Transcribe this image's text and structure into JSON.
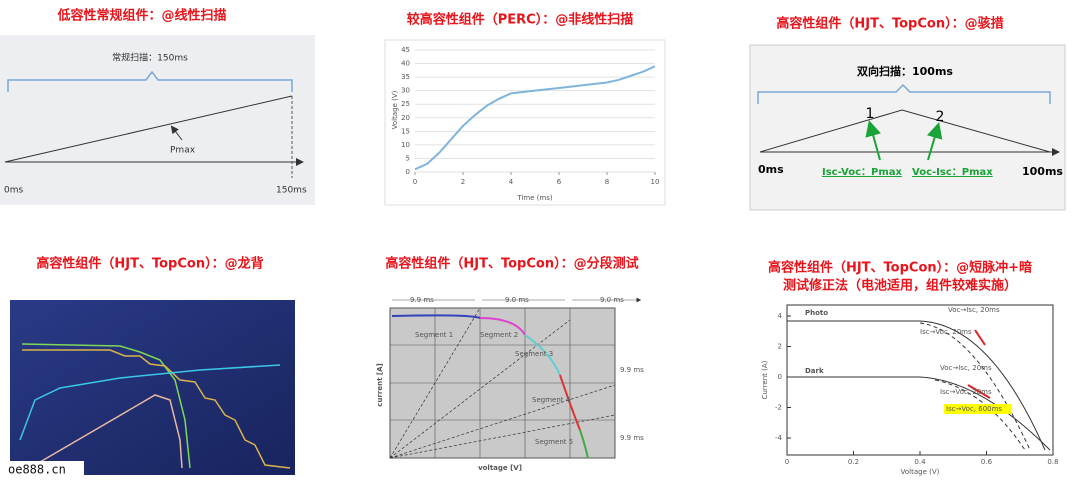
{
  "panel1": {
    "title": "低容性常规组件：@线性扫描",
    "scan_label": "常规扫描：150ms",
    "pmax": "Pmax",
    "start": "0ms",
    "end": "150ms"
  },
  "panel2": {
    "title": "较高容性组件（PERC）：@非线性扫描",
    "chart": {
      "type": "line",
      "xlabel": "Time (ms)",
      "ylabel": "Voltage (V)",
      "color": "#7fb4dd",
      "x": [
        0,
        0.5,
        1,
        1.5,
        2,
        2.5,
        3,
        3.5,
        4,
        5,
        6,
        7,
        8,
        8.5,
        9,
        9.5,
        10
      ],
      "values": [
        1,
        3,
        7,
        12,
        17,
        21,
        24.5,
        27,
        29,
        30,
        31,
        32,
        33,
        34,
        35.5,
        37,
        39
      ],
      "xlim": [
        0,
        10
      ],
      "xticks": [
        0,
        2,
        4,
        6,
        8,
        10
      ],
      "ylim": [
        0,
        45
      ],
      "yticks": [
        0,
        5,
        10,
        15,
        20,
        25,
        30,
        35,
        40,
        45
      ],
      "grid": true
    }
  },
  "panel3": {
    "title": "高容性组件（HJT、TopCon）：@骇措",
    "scan_label": "双向扫描：100ms",
    "point1": "1",
    "point2": "2",
    "label1": "Isc-Voc：Pmax",
    "label2": "Voc-Isc：Pmax",
    "start": "0ms",
    "end": "100ms"
  },
  "panel4": {
    "title": "高容性组件（HJT、TopCon）：@龙背",
    "watermark": "oe888.cn"
  },
  "panel5": {
    "title": "高容性组件（HJT、TopCon）：@分段测试",
    "interval1": "9.9 ms",
    "interval2": "9.0 ms",
    "interval3": "9.0 ms",
    "interval4": "9.9 ms",
    "interval5": "9.9 ms",
    "segments": [
      "Segment 1",
      "Segment 2",
      "Segment 3",
      "Segment 4",
      "Segment 5"
    ],
    "ylabel": "current [A]",
    "xlabel": "voltage [V]"
  },
  "panel6": {
    "title_line1": "高容性组件（HJT、TopCon）：@短脉冲+暗",
    "title_line2": "测试修正法（电池适用，组件较难实施）",
    "photo": "Photo",
    "dark": "Dark",
    "notes": [
      "Voc→Isc, 20ms",
      "Isc→Voc, 20ms",
      "Voc→Isc, 20ms",
      "Isc→Voc, 20ms",
      "Isc→Voc, 600ms"
    ],
    "xlabel": "Voltage (V)",
    "ylabel": "Current (A)",
    "xticks": [
      0,
      0.2,
      0.4,
      0.6,
      0.8
    ],
    "yticks": [
      4,
      2,
      0,
      -2,
      -4
    ]
  }
}
